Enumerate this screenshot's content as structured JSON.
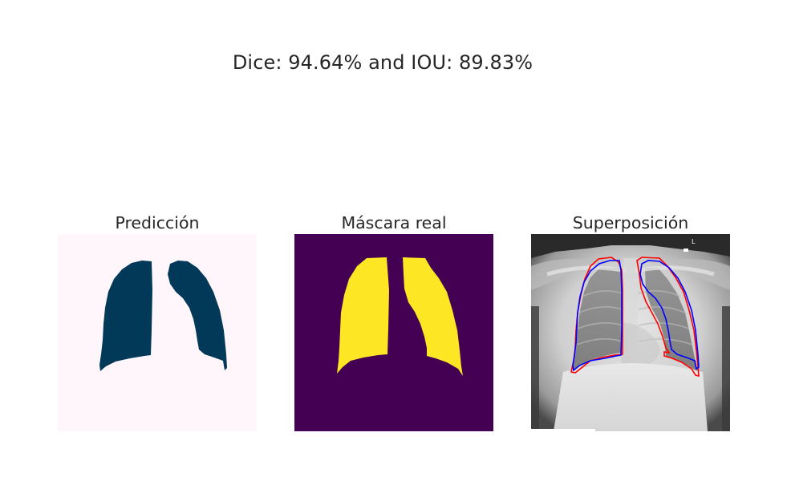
{
  "figure": {
    "suptitle": "Dice: 94.64% and IOU: 89.83%"
  },
  "panels": [
    {
      "title": "Predicción",
      "colors": {
        "background": "#fff6fb",
        "mask": "#023858"
      }
    },
    {
      "title": "Máscara real",
      "colors": {
        "background": "#440154",
        "mask": "#fde725"
      }
    },
    {
      "title": "Superposición",
      "colors": {
        "ground_truth_contour": "#ff0000",
        "prediction_contour": "#0000ff"
      },
      "marker_text": "L"
    }
  ]
}
